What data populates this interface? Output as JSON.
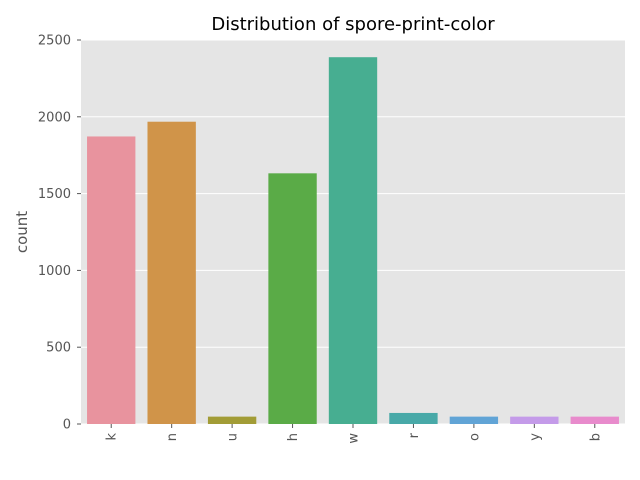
{
  "chart_data": {
    "type": "bar",
    "title": "Distribution of spore-print-color",
    "xlabel": "",
    "ylabel": "count",
    "categories": [
      "k",
      "n",
      "u",
      "h",
      "w",
      "r",
      "o",
      "y",
      "b"
    ],
    "values": [
      1872,
      1968,
      48,
      1632,
      2388,
      72,
      48,
      48,
      48
    ],
    "colors": [
      "#e8939e",
      "#d09449",
      "#a29c36",
      "#5aab47",
      "#47ae91",
      "#48a9a8",
      "#61a4d6",
      "#c49be9",
      "#e88bcc"
    ],
    "ylim": [
      0,
      2500
    ],
    "yticks": [
      0,
      500,
      1000,
      1500,
      2000,
      2500
    ],
    "grid": true,
    "background": "#e5e5e5"
  }
}
